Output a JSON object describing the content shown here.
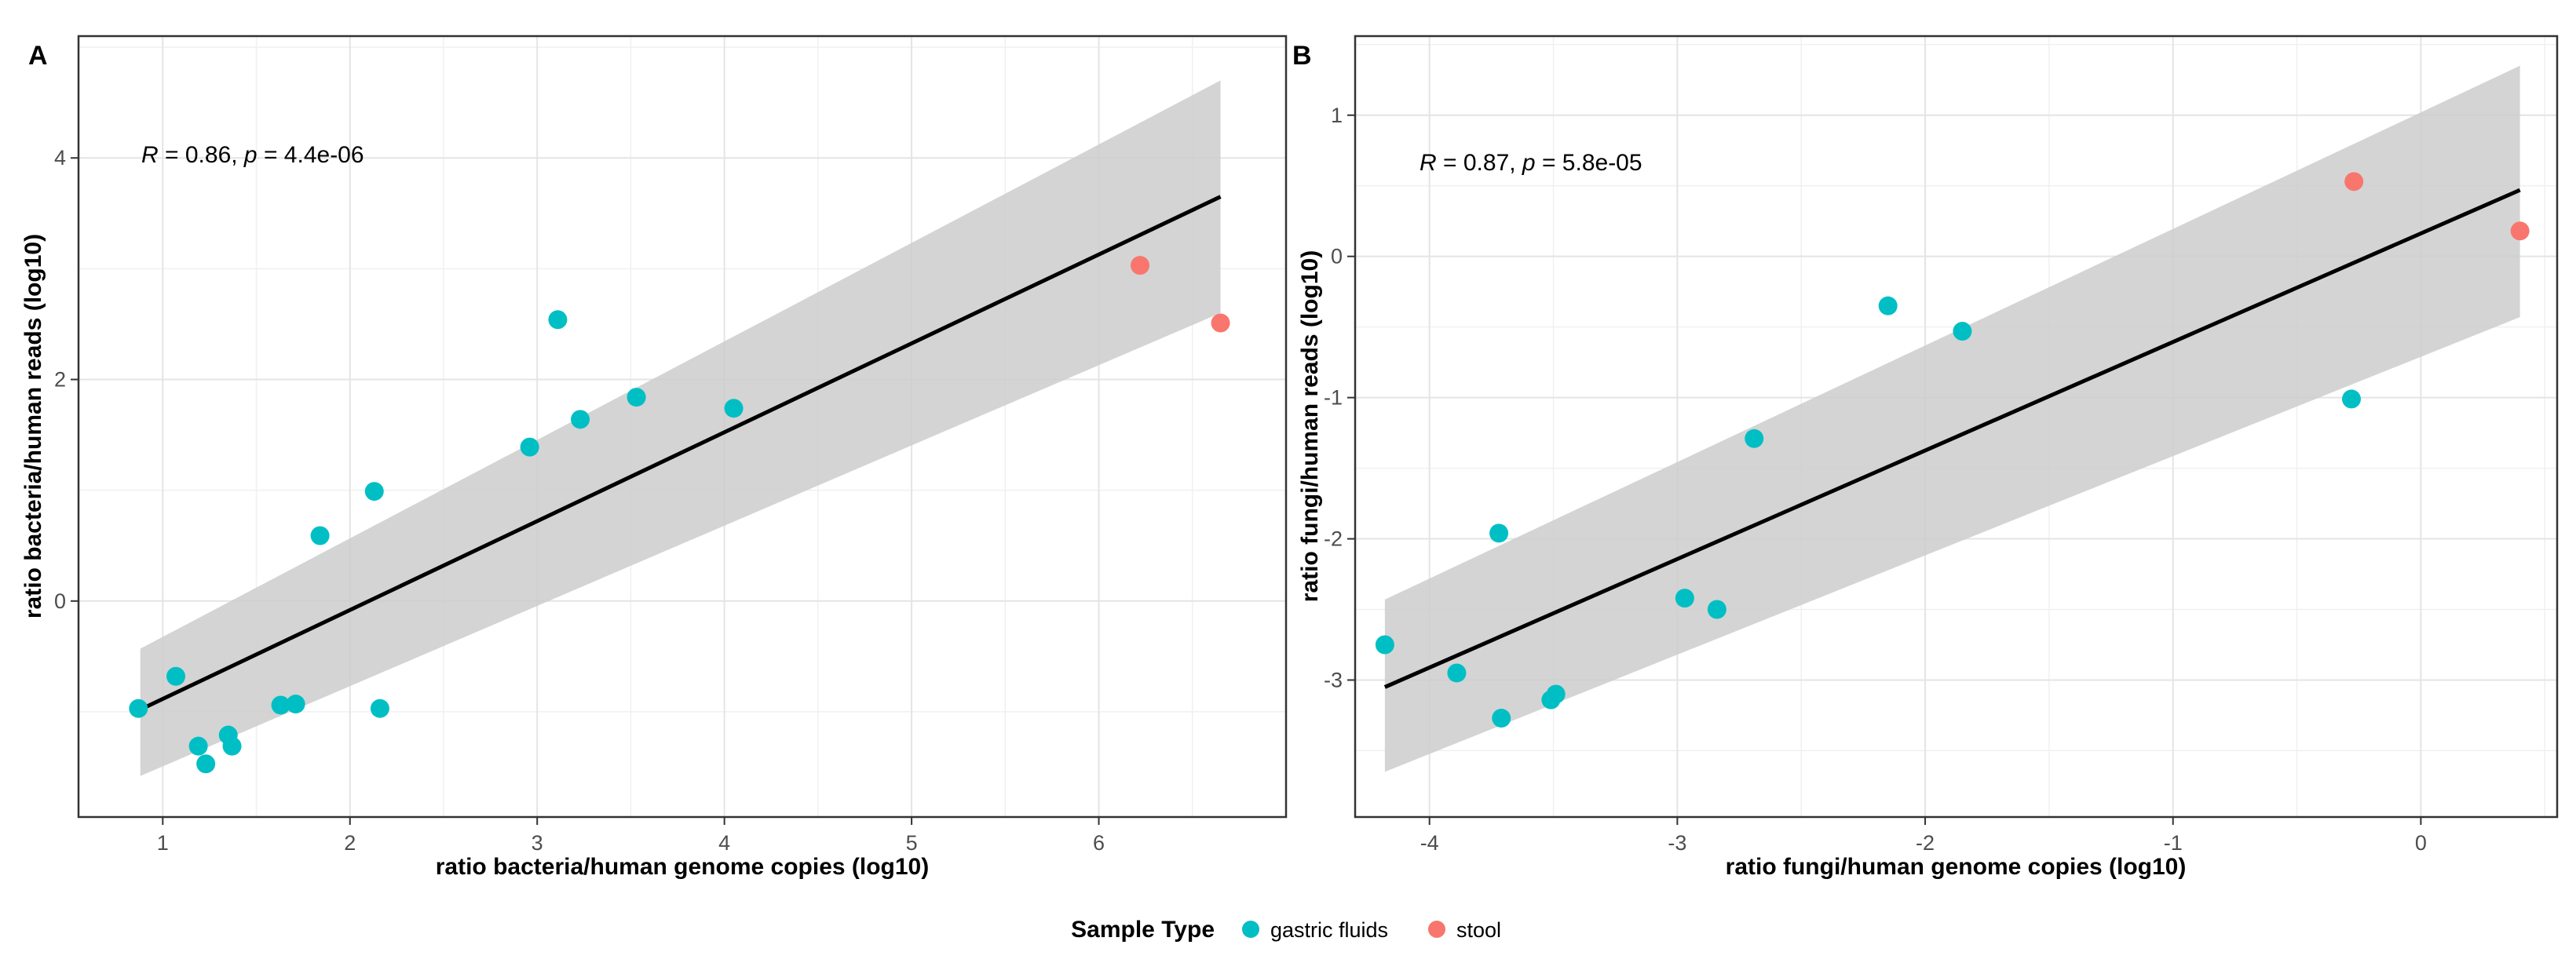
{
  "figure": {
    "legend_title": "Sample Type",
    "legend_items": [
      {
        "label": "gastric fluids",
        "color": "#00BFC4"
      },
      {
        "label": "stool",
        "color": "#F8766D"
      }
    ]
  },
  "chart_data": [
    {
      "type": "scatter",
      "panel_label": "A",
      "title": "",
      "xlabel": "ratio bacteria/human genome copies (log10)",
      "ylabel": "ratio bacteria/human reads (log10)",
      "xlim": [
        0.55,
        7.0
      ],
      "ylim": [
        -1.95,
        5.1
      ],
      "xticks": [
        1,
        2,
        3,
        4,
        5,
        6
      ],
      "yticks": [
        0,
        2,
        4
      ],
      "grid": true,
      "annotation": {
        "r_label": "R",
        "r_value": " = 0.86, ",
        "p_label": "p",
        "p_value": " = 4.4e-06"
      },
      "regression": {
        "x": [
          0.88,
          6.65
        ],
        "y": [
          -0.98,
          3.65
        ],
        "ci_lower": [
          -1.58,
          2.6
        ],
        "ci_upper": [
          -0.43,
          4.7
        ]
      },
      "series": [
        {
          "name": "gastric fluids",
          "color": "#00BFC4",
          "x": [
            0.87,
            1.07,
            1.19,
            1.23,
            1.35,
            1.37,
            1.63,
            1.71,
            1.84,
            2.13,
            2.16,
            2.96,
            3.11,
            3.23,
            3.53,
            4.05
          ],
          "y": [
            -0.97,
            -0.68,
            -1.31,
            -1.47,
            -1.21,
            -1.31,
            -0.94,
            -0.93,
            0.59,
            0.99,
            -0.97,
            1.39,
            2.54,
            1.64,
            1.84,
            1.74
          ]
        },
        {
          "name": "stool",
          "color": "#F8766D",
          "x": [
            6.22,
            6.65
          ],
          "y": [
            3.03,
            2.51
          ]
        }
      ]
    },
    {
      "type": "scatter",
      "panel_label": "B",
      "title": "",
      "xlabel": "ratio fungi/human genome copies (log10)",
      "ylabel": "ratio fungi/human reads (log10)",
      "xlim": [
        -4.3,
        0.55
      ],
      "ylim": [
        -3.97,
        1.56
      ],
      "xticks": [
        -4,
        -3,
        -2,
        -1,
        0
      ],
      "yticks": [
        -3,
        -2,
        -1,
        0,
        1
      ],
      "grid": true,
      "annotation": {
        "r_label": "R",
        "r_value": " = 0.87, ",
        "p_label": "p",
        "p_value": " = 5.8e-05"
      },
      "regression": {
        "x": [
          -4.18,
          0.4
        ],
        "y": [
          -3.05,
          0.47
        ],
        "ci_lower": [
          -3.65,
          -0.43
        ],
        "ci_upper": [
          -2.43,
          1.35
        ]
      },
      "series": [
        {
          "name": "gastric fluids",
          "color": "#00BFC4",
          "x": [
            -4.18,
            -3.89,
            -3.72,
            -3.71,
            -3.51,
            -3.49,
            -2.97,
            -2.84,
            -2.69,
            -2.15,
            -1.85,
            -0.28
          ],
          "y": [
            -2.75,
            -2.95,
            -1.96,
            -3.27,
            -3.14,
            -3.1,
            -2.42,
            -2.5,
            -1.29,
            -0.35,
            -0.53,
            -1.01
          ]
        },
        {
          "name": "stool",
          "color": "#F8766D",
          "x": [
            -0.27,
            0.4
          ],
          "y": [
            0.53,
            0.18
          ]
        }
      ]
    }
  ]
}
